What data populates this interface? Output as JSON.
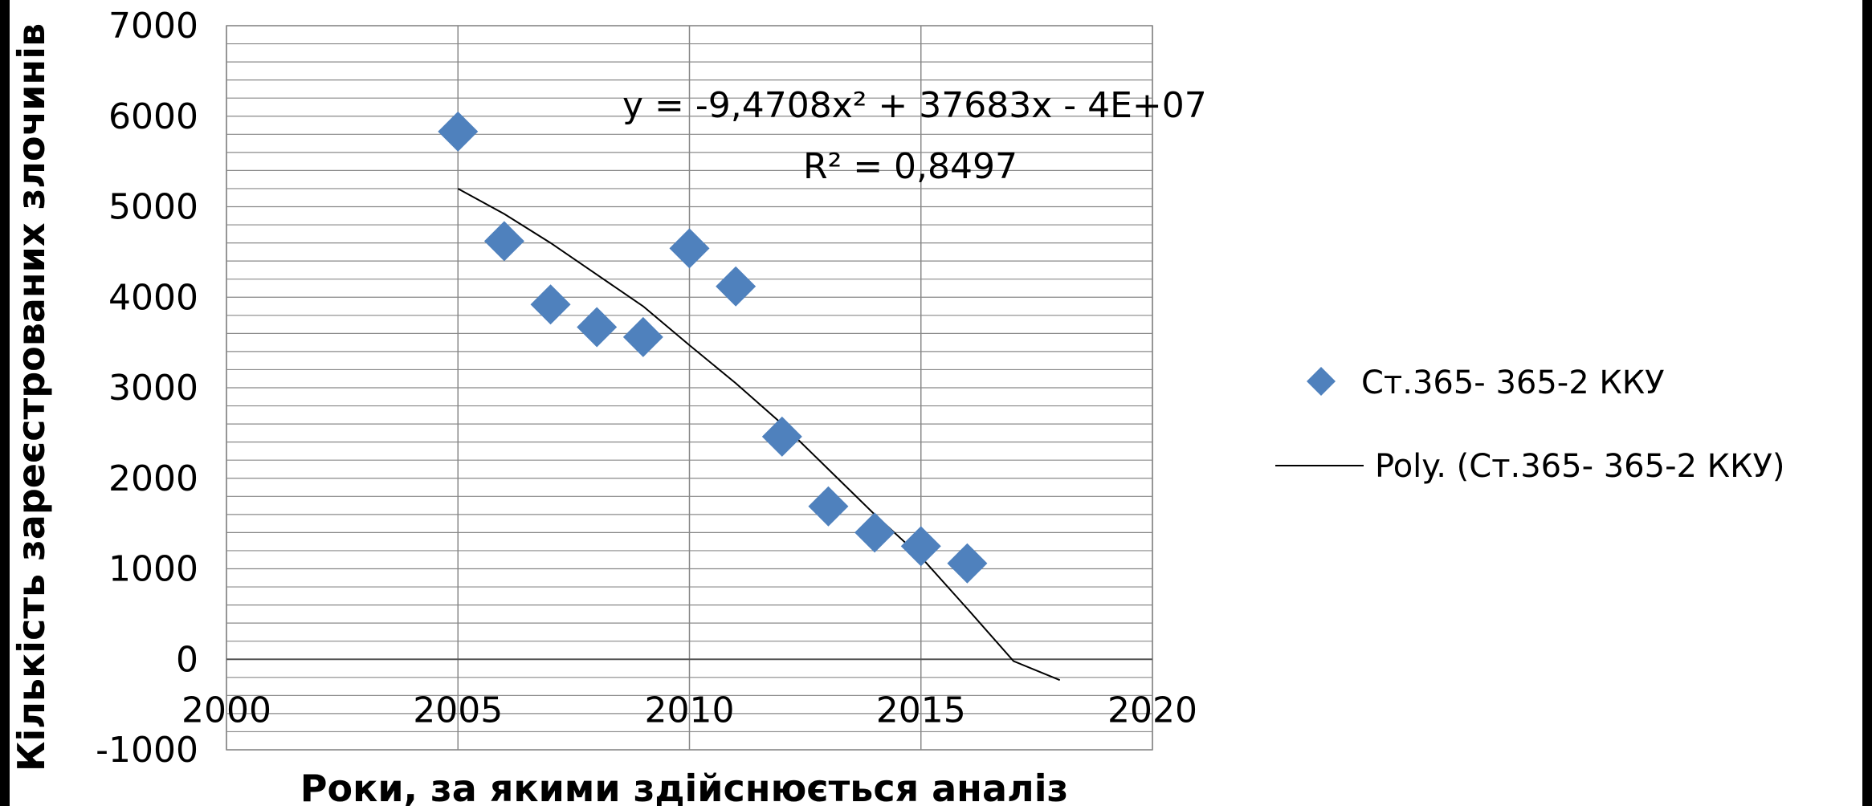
{
  "chart_data": {
    "type": "scatter",
    "xlabel": "Роки, за якими здійснюється аналіз",
    "ylabel": "Кількість зареєстрованих злочинів",
    "xlim": [
      2000,
      2020
    ],
    "ylim": [
      -1000,
      7000
    ],
    "x_ticks": [
      2000,
      2005,
      2010,
      2015,
      2020
    ],
    "y_ticks": [
      -1000,
      0,
      1000,
      2000,
      3000,
      4000,
      5000,
      6000,
      7000
    ],
    "grid": true,
    "legend_position": "right",
    "series": [
      {
        "name": "Ст.365- 365-2 ККУ",
        "marker": "diamond",
        "color": "#4F81BD",
        "x": [
          2005,
          2006,
          2007,
          2008,
          2009,
          2010,
          2011,
          2012,
          2013,
          2014,
          2015,
          2016
        ],
        "y": [
          5830,
          4620,
          3920,
          3670,
          3560,
          4540,
          4120,
          2460,
          1690,
          1400,
          1250,
          1060
        ]
      }
    ],
    "trendline": {
      "name": "Poly. (Ст.365- 365-2 ККУ)",
      "type": "polynomial",
      "order": 2,
      "color": "#000000",
      "x": [
        2005,
        2006,
        2007,
        2008,
        2009,
        2010,
        2011,
        2012,
        2013,
        2014,
        2015,
        2016,
        2017,
        2018
      ],
      "y": [
        5200,
        4920,
        4600,
        4250,
        3900,
        3470,
        3050,
        2600,
        2100,
        1600,
        1130,
        560,
        -20,
        -230
      ]
    },
    "annotations": {
      "equation": "y = -9,4708x² + 37683x - 4E+07",
      "r_squared": "R² = 0,8497"
    }
  }
}
